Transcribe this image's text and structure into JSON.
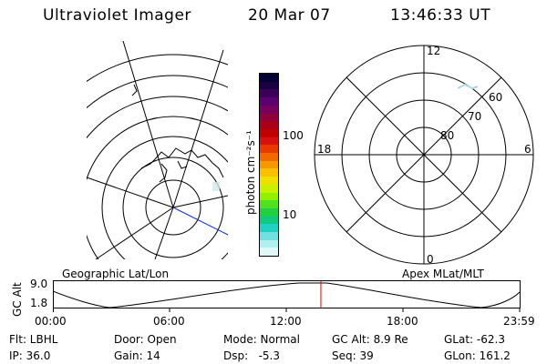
{
  "header": {
    "instrument": "Ultraviolet Imager",
    "date": "20 Mar 07",
    "time": "13:46:33 UT"
  },
  "colorbar": {
    "unit_label": "photon cm⁻²s⁻¹",
    "tick_100": "100",
    "tick_10": "10",
    "colors": [
      "#000033",
      "#1a0040",
      "#3a005a",
      "#5a0070",
      "#7a0060",
      "#90003a",
      "#a80018",
      "#c00000",
      "#d81010",
      "#e83a00",
      "#f06a00",
      "#f89800",
      "#f8c000",
      "#f0e000",
      "#c8f000",
      "#90f000",
      "#50e020",
      "#20d040",
      "#10c880",
      "#20d0c0",
      "#70e0e0",
      "#b0f0f0",
      "#e0f8f8"
    ]
  },
  "right_map": {
    "label_12": "12",
    "label_18": "18",
    "label_6": "6",
    "label_0": "0",
    "lat_60": "60",
    "lat_70": "70",
    "lat_80": "80"
  },
  "map_labels": {
    "left": "Geographic Lat/Lon",
    "right": "Apex MLat/MLT"
  },
  "altitude_plot": {
    "axis_label": "GC Alt",
    "y_top": "9.0",
    "y_bottom": "1.8",
    "x_ticks": [
      "00:00",
      "06:00",
      "12:00",
      "18:00",
      "23:59"
    ],
    "current_time_hours": 13.78
  },
  "info": {
    "filter": "Flt: LBHL",
    "ip": "IP: 36.0",
    "door": "Door: Open",
    "gain": "Gain: 14",
    "mode": "Mode: Normal",
    "dsp": "Dsp:   -5.3",
    "gc_alt": "GC Alt: 8.9 Re",
    "seq": "Seq: 39",
    "glat": "GLat: -62.3",
    "glon": "GLon: 161.2"
  }
}
